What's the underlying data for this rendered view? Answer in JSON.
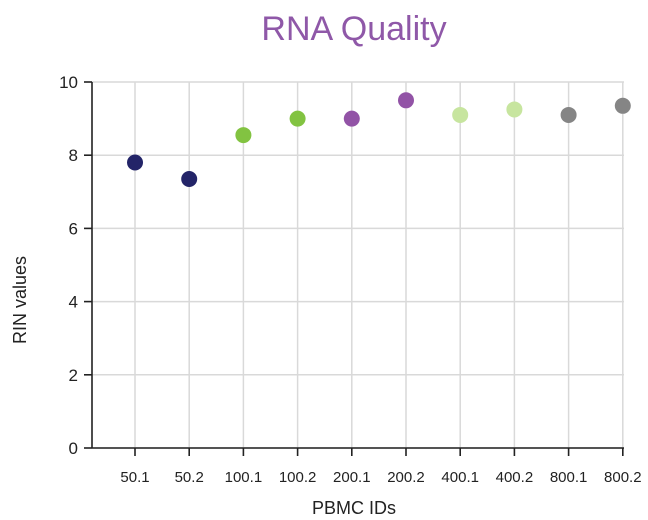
{
  "chart_data": {
    "type": "scatter",
    "title": "RNA Quality",
    "xlabel": "PBMC IDs",
    "ylabel": "RIN values",
    "ylim": [
      0,
      10
    ],
    "yticks": [
      "0",
      "2",
      "4",
      "6",
      "8",
      "10"
    ],
    "categories": [
      "50.1",
      "50.2",
      "100.1",
      "100.2",
      "200.1",
      "200.2",
      "400.1",
      "400.2",
      "800.1",
      "800.2"
    ],
    "values": [
      7.8,
      7.35,
      8.55,
      9.0,
      9.0,
      9.5,
      9.1,
      9.25,
      9.1,
      9.35
    ],
    "point_colors": [
      "#232468",
      "#232468",
      "#82c341",
      "#82c341",
      "#9253a6",
      "#9253a6",
      "#c7e59f",
      "#c7e59f",
      "#858585",
      "#858585"
    ],
    "grid": true,
    "title_color": "#8f58a8"
  }
}
